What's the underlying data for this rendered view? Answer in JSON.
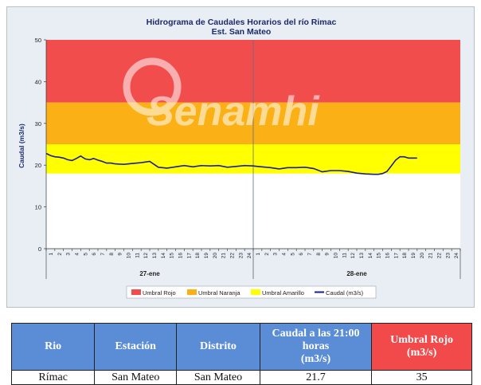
{
  "chart_data": {
    "type": "area",
    "title": "Hidrograma de Caudales Horarios del río Rimac",
    "subtitle": "Est. San Mateo",
    "ylabel": "Caudal (m3/s)",
    "ylim": [
      0,
      50
    ],
    "y_ticks": [
      "0",
      "10",
      "20",
      "30",
      "40",
      "50"
    ],
    "x_tick_labels": [
      "1",
      "2",
      "3",
      "4",
      "5",
      "6",
      "7",
      "8",
      "9",
      "10",
      "11",
      "12",
      "13",
      "14",
      "15",
      "16",
      "17",
      "18",
      "19",
      "20",
      "21",
      "22",
      "23",
      "24",
      "1",
      "2",
      "3",
      "4",
      "5",
      "6",
      "7",
      "8",
      "9",
      "10",
      "11",
      "12",
      "13",
      "14",
      "15",
      "16",
      "17",
      "18",
      "19",
      "20",
      "21",
      "22",
      "23",
      "24"
    ],
    "day_labels": [
      "27-ene",
      "28-ene"
    ],
    "bands": [
      {
        "name": "Umbral Rojo",
        "from": 35,
        "to": 50,
        "color": "#f24d4d"
      },
      {
        "name": "Umbral Naranja",
        "from": 25,
        "to": 35,
        "color": "#fbb115"
      },
      {
        "name": "Umbral Amarillo",
        "from": 18,
        "to": 25,
        "color": "#ffff00"
      }
    ],
    "series": [
      {
        "name": "Caudal (m3/s)",
        "color": "#1a1f8f",
        "x": [
          0,
          0.5,
          1,
          1.5,
          2,
          2.5,
          3,
          3.5,
          4,
          4.5,
          5,
          5.5,
          6,
          6.5,
          7,
          7.5,
          8,
          9,
          10,
          11,
          12,
          13,
          14,
          15,
          16,
          17,
          18,
          19,
          20,
          21,
          22,
          23,
          24,
          24.5,
          25,
          25.5,
          26,
          27,
          28,
          29,
          30,
          31,
          32,
          33,
          34,
          35,
          36,
          37,
          38,
          38.5,
          39,
          39.5,
          40,
          40.5,
          41,
          41.5,
          42,
          42.5,
          43
        ],
        "values": [
          22.8,
          22.3,
          22.0,
          21.9,
          21.7,
          21.3,
          21.1,
          21.6,
          22.2,
          21.5,
          21.3,
          21.6,
          21.2,
          20.9,
          20.5,
          20.5,
          20.3,
          20.2,
          20.4,
          20.6,
          20.9,
          19.5,
          19.3,
          19.6,
          19.9,
          19.6,
          19.9,
          19.8,
          19.9,
          19.5,
          19.7,
          19.9,
          19.8,
          19.7,
          19.6,
          19.5,
          19.4,
          19.1,
          19.4,
          19.4,
          19.5,
          19.2,
          18.4,
          18.7,
          18.7,
          18.5,
          18.1,
          17.9,
          17.8,
          17.8,
          18.0,
          18.5,
          19.8,
          21.2,
          22.0,
          22.0,
          21.7,
          21.7,
          21.7
        ]
      }
    ],
    "legend": [
      "Umbral Rojo",
      "Umbral Naranja",
      "Umbral Amarillo",
      "Caudal (m3/s)"
    ],
    "legend_position": "bottom",
    "grid": false
  },
  "watermark": "Senamhi",
  "table": {
    "headers": [
      "Rio",
      "Estación",
      "Distrito",
      "Caudal a las 21:00 horas",
      "(m3/s)",
      "Umbral Rojo",
      "(m3/s)"
    ],
    "row": [
      "Rímac",
      "San Mateo",
      "San Mateo",
      "21.7",
      "35"
    ],
    "colors": {
      "header_blue": "#5b8dd6",
      "header_red": "#f24a4a"
    }
  }
}
